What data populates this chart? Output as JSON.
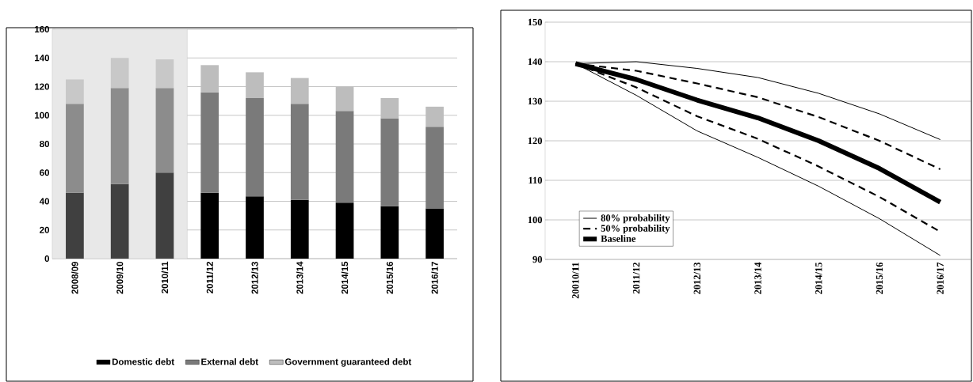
{
  "chart_data": [
    {
      "type": "bar",
      "stacked": true,
      "categories": [
        "2008/09",
        "2009/10",
        "2010/11",
        "2011/12",
        "2012/13",
        "2013/14",
        "2014/15",
        "2015/16",
        "2016/17"
      ],
      "series": [
        {
          "name": "Domestic debt",
          "color": "#000000",
          "colors": [
            "#404040",
            "#404040",
            "#404040",
            "#000000",
            "#000000",
            "#000000",
            "#000000",
            "#000000",
            "#000000"
          ],
          "values": [
            46,
            52,
            60,
            46,
            43.5,
            41,
            39,
            36.5,
            35
          ]
        },
        {
          "name": "External debt",
          "color": "#7a7a7a",
          "colors": [
            "#8c8c8c",
            "#8c8c8c",
            "#8c8c8c",
            "#7a7a7a",
            "#7a7a7a",
            "#7a7a7a",
            "#7a7a7a",
            "#7a7a7a",
            "#7a7a7a"
          ],
          "values": [
            62,
            67,
            59,
            70,
            68.5,
            67,
            64,
            61.5,
            57
          ]
        },
        {
          "name": "Government guaranteed debt",
          "color": "#bdbdbd",
          "colors": [
            "#c8c8c8",
            "#c8c8c8",
            "#c8c8c8",
            "#bdbdbd",
            "#bdbdbd",
            "#bdbdbd",
            "#bdbdbd",
            "#bdbdbd",
            "#bdbdbd"
          ],
          "values": [
            17,
            21,
            20,
            19,
            18,
            18,
            17,
            14,
            14
          ]
        }
      ],
      "bands": [
        {
          "axis": "x",
          "from": "2008/09",
          "to": "2010/11",
          "color": "#e8e8e8"
        }
      ],
      "ylim": [
        0,
        160
      ],
      "yticks": [
        0,
        20,
        40,
        60,
        80,
        100,
        120,
        140,
        160
      ],
      "grid": "y",
      "legend": "bottom"
    },
    {
      "type": "line",
      "categories": [
        "20010/11",
        "2011/12",
        "2012/13",
        "2013/14",
        "2014/15",
        "2015/16",
        "2016/17"
      ],
      "series": [
        {
          "name": "80% probability",
          "color": "#000000",
          "line_style": "solid",
          "values": [
            139.5,
            140,
            138.3,
            136,
            132,
            126.8,
            120.3
          ]
        },
        {
          "name": "50% probability",
          "color": "#000000",
          "line_style": "dashed",
          "values": [
            139.5,
            137.7,
            134.5,
            131,
            126,
            120,
            112.8
          ]
        },
        {
          "name": "Baseline",
          "color": "#000000",
          "line_style": "solid",
          "values": [
            139.5,
            135.5,
            130.3,
            125.8,
            120,
            113,
            104.5
          ]
        },
        {
          "color": "#000000",
          "line_style": "dashed",
          "values": [
            139.5,
            133.5,
            126.2,
            120.5,
            113.5,
            105.8,
            97
          ]
        },
        {
          "color": "#000000",
          "line_style": "solid",
          "values": [
            139.5,
            131.5,
            122.5,
            115.8,
            108.5,
            100.3,
            91
          ]
        }
      ],
      "ylim": [
        90,
        150
      ],
      "yticks": [
        90,
        100,
        110,
        120,
        130,
        140,
        150
      ],
      "grid": "y",
      "legend": "bottom left"
    }
  ]
}
